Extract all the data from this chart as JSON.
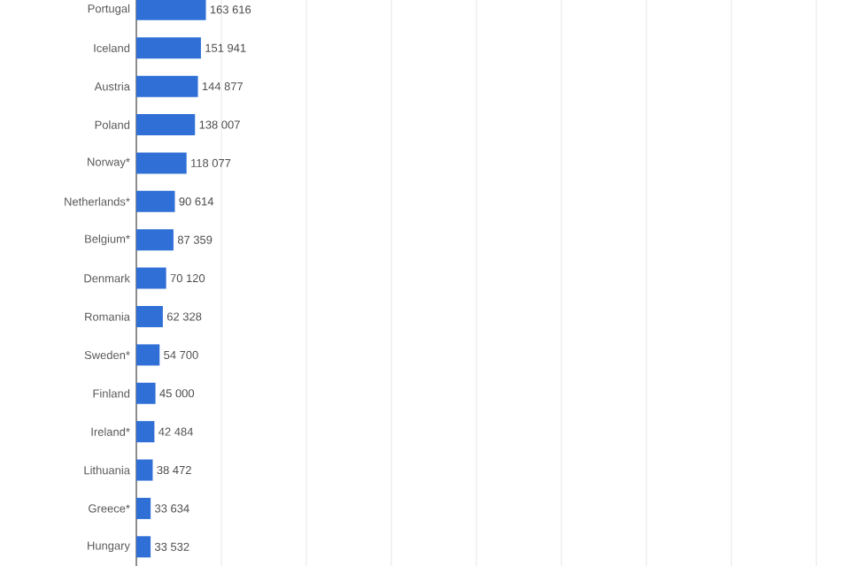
{
  "chart_data": {
    "type": "bar",
    "orientation": "horizontal",
    "color": "#2f6fd6",
    "categories": [
      "Portugal",
      "Iceland",
      "Austria",
      "Poland",
      "Norway*",
      "Netherlands*",
      "Belgium*",
      "Denmark",
      "Romania",
      "Sweden*",
      "Finland",
      "Ireland*",
      "Lithuania",
      "Greece*",
      "Hungary"
    ],
    "values": [
      163616,
      151941,
      144877,
      138007,
      118077,
      90614,
      87359,
      70120,
      62328,
      54700,
      45000,
      42484,
      38472,
      33634,
      33532
    ],
    "value_labels": [
      "163 616",
      "151 941",
      "144 877",
      "138 007",
      "118 077",
      "90 614",
      "87 359",
      "70 120",
      "62 328",
      "54 700",
      "45 000",
      "42 484",
      "38 472",
      "33 634",
      "33 532"
    ],
    "xlim": [
      0,
      1600000
    ],
    "xticks": [
      {
        "value": 0,
        "label": null
      },
      {
        "value": 200000,
        "label": null
      },
      {
        "value": 400000,
        "label": null
      },
      {
        "value": 600000,
        "label": null
      },
      {
        "value": 800000,
        "label": null
      },
      {
        "value": 1000000,
        "label": null
      },
      {
        "value": 1200000,
        "label": null
      },
      {
        "value": 1400000,
        "label": null
      },
      {
        "value": 1600000,
        "label": null
      }
    ],
    "grid": "x",
    "tick_labels": "y"
  }
}
